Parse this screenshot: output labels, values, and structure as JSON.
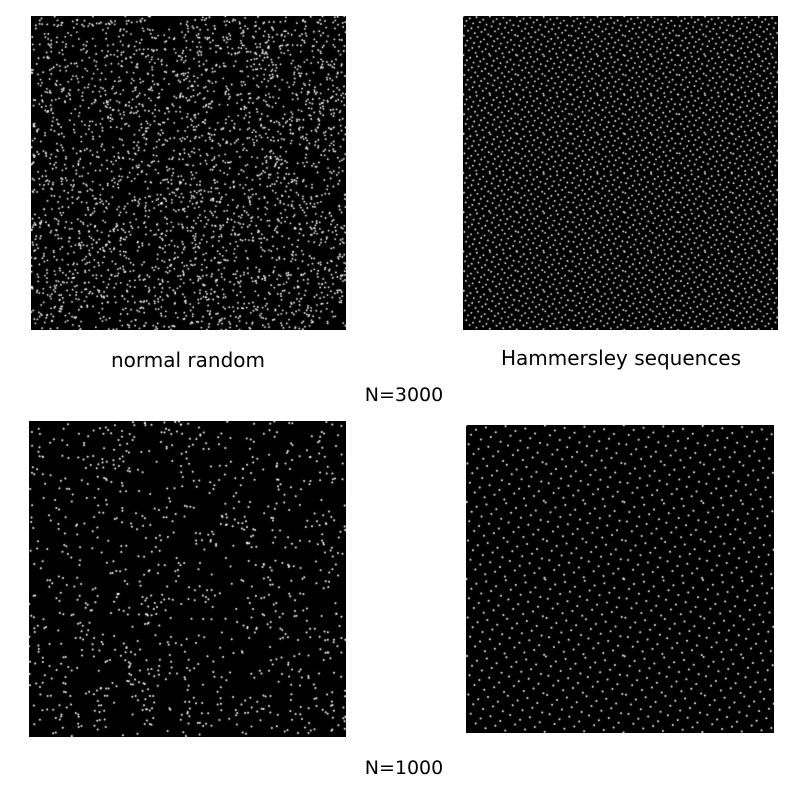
{
  "labels": {
    "random": "normal random",
    "hammersley": "Hammersley sequences",
    "n_top": "N=3000",
    "n_bottom": "N=1000"
  },
  "panels": [
    {
      "id": "random-3000",
      "method": "random",
      "n": 3000
    },
    {
      "id": "hammersley-3000",
      "method": "hammersley",
      "n": 3000
    },
    {
      "id": "random-1000",
      "method": "random",
      "n": 1000
    },
    {
      "id": "hammersley-1000",
      "method": "hammersley",
      "n": 1000
    }
  ],
  "colors": {
    "background": "#000000",
    "point": "#ffffff",
    "page": "#ffffff"
  }
}
